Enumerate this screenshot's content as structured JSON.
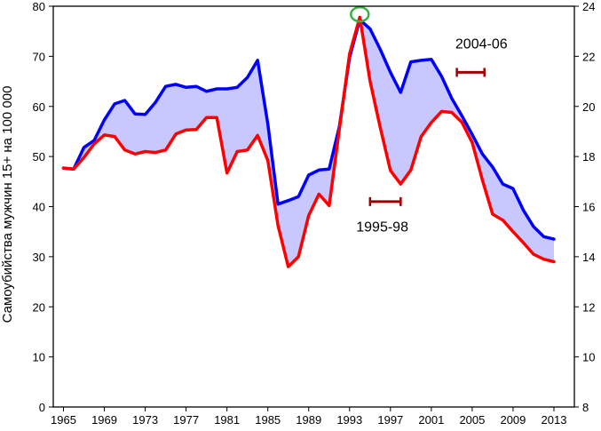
{
  "chart_data": {
    "type": "area",
    "ylabel": "Самоубийства мужчин 15+ на 100 000",
    "xlim": [
      1964,
      2015
    ],
    "ylim": [
      0,
      80
    ],
    "y2lim": [
      8,
      24
    ],
    "x_ticks": [
      1965,
      1969,
      1973,
      1977,
      1981,
      1985,
      1989,
      1993,
      1997,
      2001,
      2005,
      2009,
      2013
    ],
    "y_ticks": [
      0,
      10,
      20,
      30,
      40,
      50,
      60,
      70,
      80
    ],
    "y2_ticks": [
      8,
      10,
      12,
      14,
      16,
      18,
      20,
      22,
      24
    ],
    "series": [
      {
        "color": "#0000ff",
        "x": [
          1965,
          1966,
          1967,
          1968,
          1969,
          1970,
          1971,
          1972,
          1973,
          1974,
          1975,
          1976,
          1977,
          1978,
          1979,
          1980,
          1981,
          1982,
          1983,
          1984,
          1985,
          1986,
          1987,
          1988,
          1989,
          1990,
          1991,
          1992,
          1993,
          1994,
          1995,
          1996,
          1997,
          1998,
          1999,
          2000,
          2001,
          2002,
          2003,
          2004,
          2005,
          2006,
          2007,
          2008,
          2009,
          2010,
          2011,
          2012,
          2013
        ],
        "values": [
          47.7,
          47.5,
          51.8,
          53.2,
          57.3,
          60.5,
          61.2,
          58.5,
          58.4,
          60.8,
          64.0,
          64.4,
          63.8,
          64.0,
          63.0,
          63.5,
          63.5,
          63.8,
          65.8,
          69.2,
          56.5,
          40.5,
          41.2,
          42.0,
          46.3,
          47.3,
          47.5,
          56.0,
          69.8,
          77.3,
          75.5,
          71.4,
          66.8,
          62.8,
          68.9,
          69.2,
          69.4,
          66.0,
          61.6,
          58.1,
          54.4,
          50.5,
          47.9,
          44.5,
          43.6,
          39.3,
          36.0,
          34.0,
          33.5
        ]
      },
      {
        "color": "#ff0000",
        "x": [
          1965,
          1966,
          1967,
          1968,
          1969,
          1970,
          1971,
          1972,
          1973,
          1974,
          1975,
          1976,
          1977,
          1978,
          1979,
          1980,
          1981,
          1982,
          1983,
          1984,
          1985,
          1986,
          1987,
          1988,
          1989,
          1990,
          1991,
          1992,
          1993,
          1994,
          1995,
          1996,
          1997,
          1998,
          1999,
          2000,
          2001,
          2002,
          2003,
          2004,
          2005,
          2006,
          2007,
          2008,
          2009,
          2010,
          2011,
          2012,
          2013
        ],
        "values": [
          47.7,
          47.5,
          49.8,
          52.5,
          54.3,
          54.0,
          51.3,
          50.5,
          51.0,
          50.8,
          51.3,
          54.5,
          55.3,
          55.4,
          57.8,
          57.8,
          46.7,
          51.0,
          51.3,
          54.2,
          49.2,
          36.2,
          28.0,
          30.0,
          38.2,
          42.5,
          40.2,
          55.5,
          70.5,
          77.8,
          65.1,
          55.8,
          47.2,
          44.5,
          47.3,
          54.0,
          56.8,
          59.0,
          58.8,
          56.8,
          52.8,
          45.3,
          38.5,
          37.3,
          35.0,
          32.8,
          30.5,
          29.5,
          29.0
        ]
      }
    ],
    "fill_between_color": "#c8c8ff",
    "peak_marker": {
      "x": 1994,
      "y": 77.5,
      "color": "#3cb043"
    },
    "annotations": [
      {
        "text": "1995-98",
        "range": [
          1995,
          1998
        ],
        "bar_y": 41,
        "label_x": 1996.2,
        "label_y": 35
      },
      {
        "text": "2004-06",
        "range": [
          2003.5,
          2006.2
        ],
        "bar_y": 66.8,
        "label_x": 2005.9,
        "label_y": 71.6
      }
    ],
    "annotation_color": "#a00000",
    "grid": false,
    "legend": "none"
  }
}
